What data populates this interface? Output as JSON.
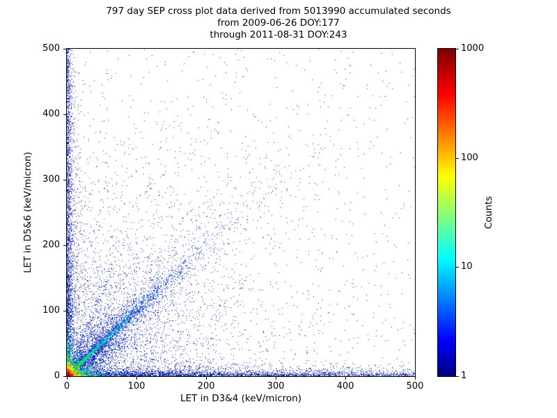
{
  "chart_data": {
    "type": "scatter",
    "title_lines": [
      "797 day SEP cross plot data derived from 5013990 accumulated seconds",
      "from 2009-06-26 DOY:177",
      "through 2011-08-31 DOY:243"
    ],
    "xlabel": "LET in D3&4 (keV/micron)",
    "ylabel": "LET in D5&6 (keV/micron)",
    "xlim": [
      0,
      500
    ],
    "ylim": [
      0,
      500
    ],
    "x_ticks": [
      0,
      100,
      200,
      300,
      400,
      500
    ],
    "y_ticks": [
      0,
      100,
      200,
      300,
      400,
      500
    ],
    "grid": false,
    "colorbar": {
      "label": "Counts",
      "scale": "log",
      "range": [
        1,
        1000
      ],
      "colormap": "jet",
      "ticks": [
        {
          "label": "1000",
          "frac": 0
        },
        {
          "label": "100",
          "frac": 0.3333
        },
        {
          "label": "10",
          "frac": 0.6667
        },
        {
          "label": "1",
          "frac": 1
        }
      ],
      "gradient_top_to_bottom": [
        {
          "pos": 0,
          "color": "#7f0000"
        },
        {
          "pos": 14,
          "color": "#ff0000"
        },
        {
          "pos": 39,
          "color": "#ffff00"
        },
        {
          "pos": 64,
          "color": "#00ffff"
        },
        {
          "pos": 89,
          "color": "#0000ff"
        },
        {
          "pos": 100,
          "color": "#00007f"
        }
      ]
    },
    "description": "2D density cross plot: hot red/orange/yellow core at the origin, cyan-green diagonal streak along y=x, blue fan of coincidence rays, dense dark-blue bands hugging both axes, sparse dark-blue points across the whole field",
    "seed": 1337,
    "point_groups": [
      {
        "name": "bottom-strip-far",
        "type": "hstrip",
        "count": 1600,
        "x_range": [
          0,
          500
        ],
        "y_scale": 3,
        "color": "#1226a8",
        "size": 1
      },
      {
        "name": "left-strip-far",
        "type": "vstrip",
        "count": 1200,
        "y_range": [
          0,
          500
        ],
        "x_scale": 3,
        "color": "#1226a8",
        "size": 1
      },
      {
        "name": "diffuse-lower-left",
        "type": "blob",
        "count": 3200,
        "x_scale": 110,
        "y_scale": 110,
        "color": "#101d9e",
        "size": 1
      },
      {
        "name": "bottom-band",
        "type": "blob",
        "count": 1800,
        "x_scale": 220,
        "y_scale": 5,
        "color": "#1226a8",
        "size": 1
      },
      {
        "name": "left-band",
        "type": "blob",
        "count": 1500,
        "x_scale": 5,
        "y_scale": 220,
        "color": "#1226a8",
        "size": 1
      },
      {
        "name": "sparse-field",
        "type": "uniform",
        "count": 650,
        "x_range": [
          0,
          500
        ],
        "y_range": [
          0,
          500
        ],
        "color": "#101d9e",
        "size": 1
      },
      {
        "name": "diag-cloud-broad",
        "type": "ray",
        "count": 900,
        "slope": 1,
        "t_scale": 120,
        "jitter": 8,
        "jitter_growth": 0.25,
        "color": "#101d9e",
        "size": 1
      },
      {
        "name": "diag-blue",
        "type": "ray",
        "count": 2600,
        "slope": 1,
        "t_scale": 65,
        "jitter": 3.5,
        "jitter_growth": 0.1,
        "color": "#1a35c0",
        "size": 1
      },
      {
        "name": "ray-slope-05",
        "type": "ray",
        "count": 450,
        "slope": 0.5,
        "t_scale": 55,
        "jitter": 3,
        "jitter_growth": 0.12,
        "color": "#1a35c0",
        "size": 1
      },
      {
        "name": "ray-slope-065",
        "type": "ray",
        "count": 400,
        "slope": 0.65,
        "t_scale": 55,
        "jitter": 3,
        "jitter_growth": 0.12,
        "color": "#1a35c0",
        "size": 1
      },
      {
        "name": "ray-slope-08",
        "type": "ray",
        "count": 380,
        "slope": 0.8,
        "t_scale": 55,
        "jitter": 3,
        "jitter_growth": 0.12,
        "color": "#1a35c0",
        "size": 1
      },
      {
        "name": "ray-slope-13",
        "type": "ray",
        "count": 420,
        "slope": 1.3,
        "t_scale": 50,
        "jitter": 3,
        "jitter_growth": 0.12,
        "color": "#1a35c0",
        "size": 1
      },
      {
        "name": "ray-slope-18",
        "type": "ray",
        "count": 350,
        "slope": 1.8,
        "t_scale": 45,
        "jitter": 3,
        "jitter_growth": 0.12,
        "color": "#1a35c0",
        "size": 1
      },
      {
        "name": "ray-slope-25",
        "type": "ray",
        "count": 300,
        "slope": 2.5,
        "t_scale": 40,
        "jitter": 3,
        "jitter_growth": 0.12,
        "color": "#1a35c0",
        "size": 1
      },
      {
        "name": "diag-blue-cyan",
        "type": "ray",
        "count": 1200,
        "slope": 1,
        "t_scale": 45,
        "jitter": 2.2,
        "jitter_growth": 0.06,
        "color": "#2d62d8",
        "size": 1
      },
      {
        "name": "diag-cyan",
        "type": "ray",
        "count": 1300,
        "slope": 1,
        "t_scale": 30,
        "jitter": 1.6,
        "jitter_growth": 0.04,
        "color": "#00cfe6",
        "size": 1
      },
      {
        "name": "core-cyan",
        "type": "blob",
        "count": 900,
        "x_scale": 12,
        "y_scale": 12,
        "color": "#00cfe6",
        "size": 1
      },
      {
        "name": "xaxis-cyan",
        "type": "ray",
        "count": 350,
        "slope": 0,
        "t_scale": 16,
        "jitter": 1.8,
        "jitter_growth": 0.05,
        "color": "#00cfe6",
        "size": 1,
        "axis": true
      },
      {
        "name": "yaxis-cyan",
        "type": "ray",
        "count": 300,
        "vertical": true,
        "t_scale": 16,
        "jitter": 1.8,
        "jitter_growth": 0.05,
        "color": "#00cfe6",
        "size": 1,
        "axis": true
      },
      {
        "name": "diag-green",
        "type": "ray",
        "count": 500,
        "slope": 1,
        "t_scale": 15,
        "jitter": 1.3,
        "jitter_growth": 0.03,
        "color": "#35d435",
        "size": 1
      },
      {
        "name": "core-green",
        "type": "blob",
        "count": 700,
        "x_scale": 8,
        "y_scale": 8,
        "color": "#35d435",
        "size": 1
      },
      {
        "name": "xaxis-green",
        "type": "ray",
        "count": 250,
        "slope": 0,
        "t_scale": 10,
        "jitter": 1.3,
        "jitter_growth": 0.04,
        "color": "#35d435",
        "size": 1,
        "axis": true
      },
      {
        "name": "yaxis-green",
        "type": "ray",
        "count": 220,
        "vertical": true,
        "t_scale": 10,
        "jitter": 1.3,
        "jitter_growth": 0.04,
        "color": "#35d435",
        "size": 1,
        "axis": true
      },
      {
        "name": "core-yellow",
        "type": "blob",
        "count": 650,
        "x_scale": 5,
        "y_scale": 5,
        "color": "#ffe51a",
        "size": 1
      },
      {
        "name": "xaxis-yellow",
        "type": "ray",
        "count": 150,
        "slope": 0,
        "t_scale": 6,
        "jitter": 1,
        "jitter_growth": 0.03,
        "color": "#ffe51a",
        "size": 1,
        "axis": true
      },
      {
        "name": "yaxis-yellow",
        "type": "ray",
        "count": 130,
        "vertical": true,
        "t_scale": 6,
        "jitter": 1,
        "jitter_growth": 0.03,
        "color": "#ffe51a",
        "size": 1,
        "axis": true
      },
      {
        "name": "core-orange",
        "type": "blob",
        "count": 500,
        "x_scale": 3,
        "y_scale": 3,
        "color": "#ff8c00",
        "size": 1
      },
      {
        "name": "core-red",
        "type": "blob",
        "count": 450,
        "x_scale": 1.8,
        "y_scale": 1.8,
        "color": "#e01000",
        "size": 1
      },
      {
        "name": "core-darkred",
        "type": "blob",
        "count": 200,
        "x_scale": 1,
        "y_scale": 1,
        "color": "#9b0000",
        "size": 1
      }
    ]
  }
}
